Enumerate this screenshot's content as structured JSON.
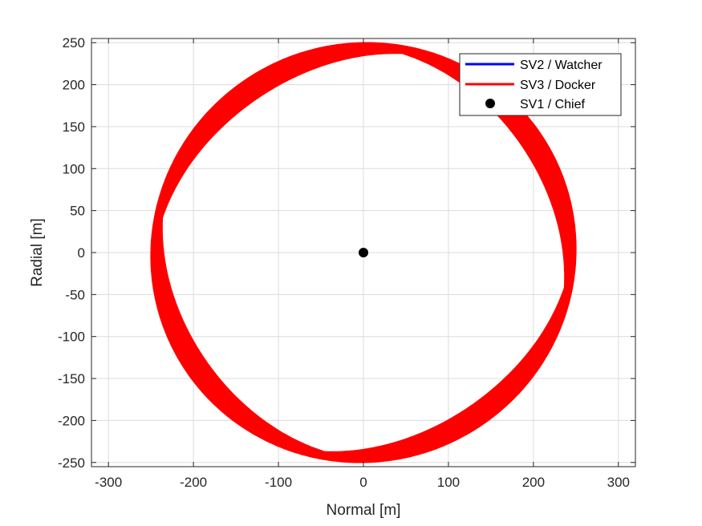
{
  "chart_data": {
    "type": "line",
    "title": "",
    "xlabel": "Normal [m]",
    "ylabel": "Radial [m]",
    "xlim": [
      -320,
      320
    ],
    "ylim": [
      -255,
      255
    ],
    "xticks": [
      -300,
      -200,
      -100,
      0,
      100,
      200,
      300
    ],
    "yticks": [
      -250,
      -200,
      -150,
      -100,
      -50,
      0,
      50,
      100,
      150,
      200,
      250
    ],
    "grid": true,
    "legend_position": "top-right",
    "series": [
      {
        "name": "SV2 / Watcher",
        "color": "#0000ff",
        "kind": "line",
        "shape": "ellipse",
        "center": [
          0,
          0
        ],
        "radius_normal": 250,
        "radius_radial": 250,
        "band_width": 0
      },
      {
        "name": "SV3 / Docker",
        "color": "#ff0000",
        "kind": "band",
        "shape": "ellipse",
        "center": [
          0,
          0
        ],
        "radius_normal": 250,
        "radius_radial": 250,
        "band_width": 26
      },
      {
        "name": "SV1 / Chief",
        "color": "#000000",
        "kind": "marker",
        "x": [
          0
        ],
        "y": [
          0
        ]
      }
    ]
  }
}
